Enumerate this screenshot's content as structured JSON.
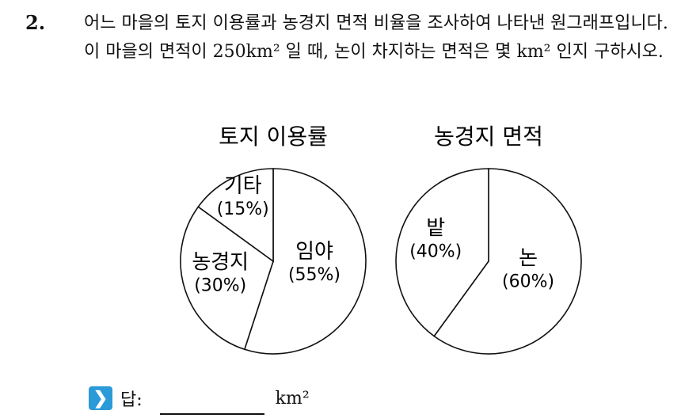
{
  "problem": {
    "number": "2.",
    "text": "어느 마을의 토지 이용률과 농경지 면적 비율을 조사하여 나타낸 원그래프입니다. 이 마을의 면적이 250km² 일 때, 논이 차지하는 면적은 몇 km² 인지 구하시오.",
    "answer_label": "답:",
    "answer_unit": "km²"
  },
  "chart_data": [
    {
      "type": "pie",
      "title": "토지 이용률",
      "categories": [
        "임야",
        "농경지",
        "기타"
      ],
      "values": [
        55,
        30,
        15
      ],
      "value_labels": [
        "(55%)",
        "(30%)",
        "(15%)"
      ]
    },
    {
      "type": "pie",
      "title": "농경지 면적",
      "categories": [
        "논",
        "밭"
      ],
      "values": [
        60,
        40
      ],
      "value_labels": [
        "(60%)",
        "(40%)"
      ]
    }
  ]
}
